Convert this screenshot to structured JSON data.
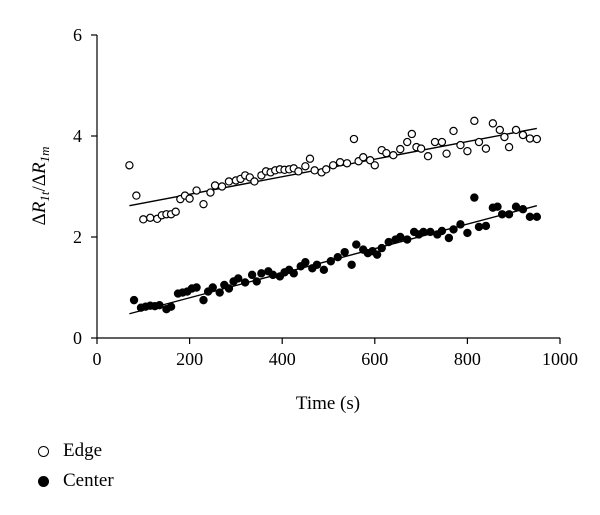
{
  "chart_data": {
    "type": "scatter",
    "xlabel": "Time (s)",
    "ylabel": "ΔR1t/ΔR1m",
    "xlim": [
      0,
      1000
    ],
    "ylim": [
      0,
      6
    ],
    "xticks": [
      0,
      200,
      400,
      600,
      800,
      1000
    ],
    "yticks": [
      0,
      2,
      4,
      6
    ],
    "grid": false,
    "legend_position": "bottom-left",
    "series": [
      {
        "name": "Edge",
        "marker": "open-circle",
        "color": "#000000",
        "x": [
          70,
          85,
          100,
          115,
          130,
          140,
          150,
          160,
          170,
          180,
          190,
          200,
          215,
          230,
          245,
          255,
          270,
          285,
          300,
          310,
          320,
          330,
          340,
          355,
          365,
          375,
          385,
          395,
          405,
          415,
          425,
          435,
          450,
          460,
          470,
          485,
          495,
          510,
          525,
          540,
          555,
          565,
          575,
          590,
          600,
          615,
          625,
          640,
          655,
          670,
          680,
          690,
          700,
          715,
          730,
          745,
          755,
          770,
          785,
          800,
          815,
          825,
          840,
          855,
          870,
          880,
          890,
          905,
          920,
          935,
          950
        ],
        "y": [
          3.42,
          2.82,
          2.35,
          2.38,
          2.36,
          2.43,
          2.45,
          2.45,
          2.5,
          2.75,
          2.82,
          2.76,
          2.92,
          2.65,
          2.88,
          3.02,
          3.0,
          3.1,
          3.12,
          3.15,
          3.22,
          3.18,
          3.1,
          3.22,
          3.3,
          3.28,
          3.32,
          3.34,
          3.33,
          3.34,
          3.36,
          3.3,
          3.4,
          3.55,
          3.32,
          3.28,
          3.34,
          3.42,
          3.48,
          3.46,
          3.94,
          3.5,
          3.58,
          3.52,
          3.42,
          3.72,
          3.66,
          3.62,
          3.74,
          3.88,
          4.04,
          3.78,
          3.75,
          3.6,
          3.88,
          3.88,
          3.65,
          4.1,
          3.82,
          3.7,
          4.3,
          3.88,
          3.75,
          4.25,
          4.12,
          3.98,
          3.78,
          4.12,
          4.02,
          3.95,
          3.94
        ]
      },
      {
        "name": "Center",
        "marker": "filled-circle",
        "color": "#000000",
        "x": [
          80,
          95,
          105,
          115,
          125,
          135,
          150,
          160,
          175,
          185,
          195,
          205,
          215,
          230,
          240,
          250,
          265,
          275,
          285,
          295,
          305,
          320,
          335,
          345,
          355,
          370,
          380,
          395,
          405,
          415,
          425,
          440,
          450,
          465,
          475,
          490,
          505,
          520,
          535,
          550,
          560,
          575,
          585,
          595,
          605,
          615,
          630,
          645,
          655,
          670,
          685,
          695,
          705,
          720,
          735,
          745,
          760,
          770,
          785,
          800,
          815,
          825,
          840,
          855,
          865,
          875,
          890,
          905,
          920,
          935,
          950
        ],
        "y": [
          0.75,
          0.6,
          0.62,
          0.64,
          0.63,
          0.65,
          0.57,
          0.62,
          0.88,
          0.9,
          0.92,
          0.98,
          1.0,
          0.75,
          0.92,
          1.0,
          0.9,
          1.05,
          0.98,
          1.12,
          1.18,
          1.1,
          1.25,
          1.12,
          1.28,
          1.32,
          1.25,
          1.22,
          1.3,
          1.35,
          1.28,
          1.42,
          1.5,
          1.38,
          1.45,
          1.35,
          1.52,
          1.6,
          1.7,
          1.45,
          1.85,
          1.75,
          1.68,
          1.72,
          1.65,
          1.78,
          1.9,
          1.95,
          2.0,
          1.95,
          2.1,
          2.05,
          2.1,
          2.1,
          2.05,
          2.12,
          1.98,
          2.15,
          2.25,
          2.08,
          2.78,
          2.2,
          2.22,
          2.58,
          2.6,
          2.45,
          2.45,
          2.6,
          2.55,
          2.4,
          2.4
        ]
      }
    ],
    "trendlines": [
      {
        "series": "Edge",
        "x": [
          70,
          950
        ],
        "y": [
          2.62,
          4.15
        ]
      },
      {
        "series": "Center",
        "x": [
          70,
          950
        ],
        "y": [
          0.48,
          2.62
        ]
      }
    ]
  }
}
